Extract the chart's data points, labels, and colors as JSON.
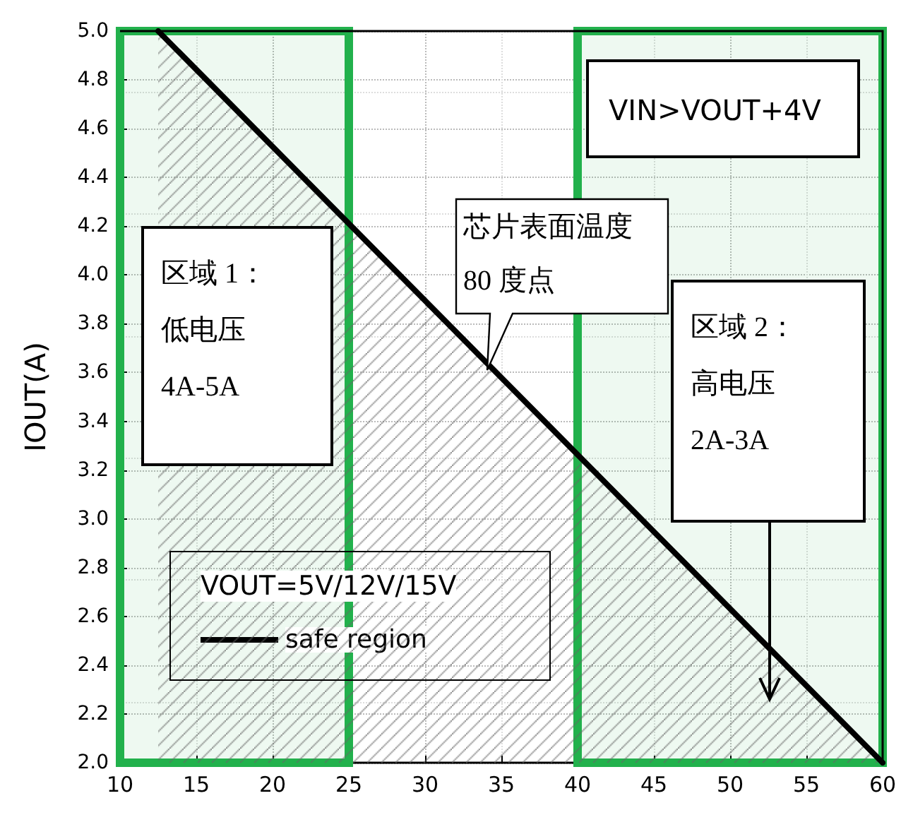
{
  "chart_data": {
    "type": "area",
    "ylabel": "IOUT(A)",
    "legend_title": "VOUT=5V/12V/15V",
    "legend": "bottom left",
    "x": [
      12.5,
      60
    ],
    "series": [
      {
        "name": "safe region",
        "color": "#000000",
        "values": [
          5.0,
          2.0
        ]
      }
    ],
    "xlim": [
      10,
      60
    ],
    "xticks": [
      10,
      15,
      20,
      25,
      30,
      35,
      40,
      45,
      50,
      55,
      60
    ],
    "ylim": [
      2.0,
      5.0
    ],
    "yticks": [
      {
        "value": 2.0,
        "label": "2.0"
      },
      {
        "value": 2.2,
        "label": "2.2"
      },
      {
        "value": 2.4,
        "label": "2.4"
      },
      {
        "value": 2.6,
        "label": "2.6"
      },
      {
        "value": 2.8,
        "label": "2.8"
      },
      {
        "value": 3.0,
        "label": "3.0"
      },
      {
        "value": 3.2,
        "label": "3.2"
      },
      {
        "value": 3.4,
        "label": "3.4"
      },
      {
        "value": 3.6,
        "label": "3.6"
      },
      {
        "value": 3.8,
        "label": "3.8"
      },
      {
        "value": 4.0,
        "label": "4.0"
      },
      {
        "value": 4.2,
        "label": "4.2"
      },
      {
        "value": 4.4,
        "label": "4.4"
      },
      {
        "value": 4.6,
        "label": "4.6"
      },
      {
        "value": 4.8,
        "label": "4.8"
      },
      {
        "value": 5.0,
        "label": "5.0"
      }
    ],
    "grid": true,
    "marker": "none",
    "line_style": "solid",
    "bands": [
      {
        "axis": "x",
        "from": 10,
        "to": 25,
        "label": "区域 1：低电压4A-5A",
        "color": "#22b14c"
      },
      {
        "axis": "x",
        "from": 40,
        "to": 60,
        "label": "区域 2：高电压2A-3A",
        "color": "#22b14c"
      }
    ],
    "annotations": [
      "VIN>VOUT+4V",
      "芯片表面温度 80 度点"
    ]
  }
}
